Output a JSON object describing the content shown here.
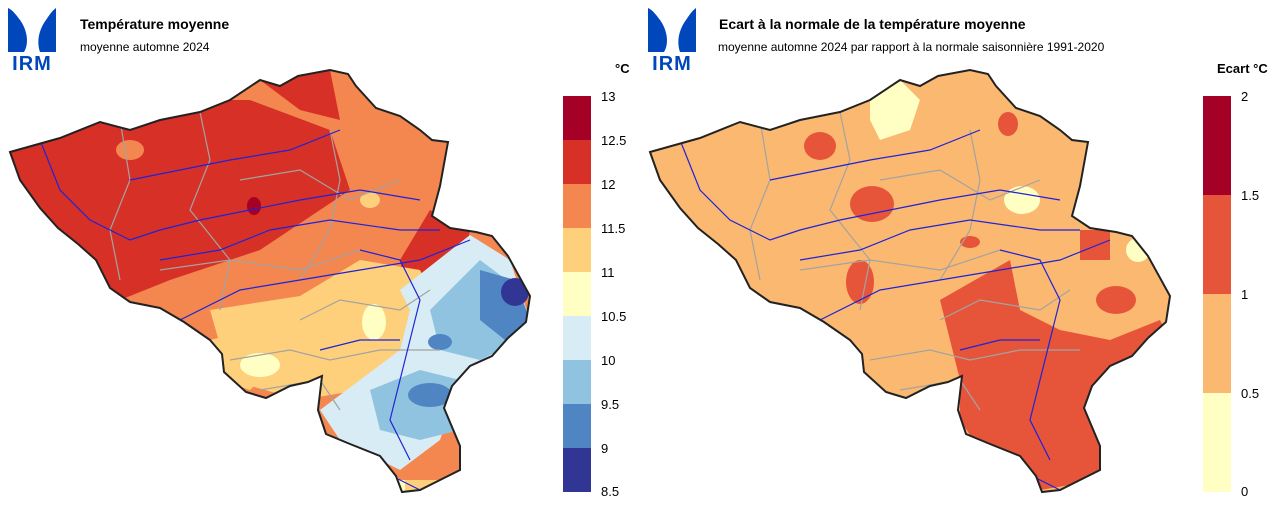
{
  "left_panel": {
    "logo_text": "IRM",
    "title": "Température moyenne",
    "subtitle": "moyenne automne 2024",
    "unit": "°C",
    "legend": {
      "ticks": [
        "13",
        "12.5",
        "12",
        "11.5",
        "11",
        "10.5",
        "10",
        "9.5",
        "9",
        "8.5"
      ],
      "colors": [
        "#a50026",
        "#d73027",
        "#f4874f",
        "#fed07b",
        "#ffffc3",
        "#d7ecf5",
        "#90c3e0",
        "#4f85c2",
        "#313695"
      ]
    }
  },
  "right_panel": {
    "logo_text": "IRM",
    "title": "Ecart à la normale de la température moyenne",
    "subtitle": "moyenne automne 2024 par rapport à la normale saisonnière 1991-2020",
    "unit": "Ecart °C",
    "legend": {
      "ticks": [
        "2",
        "1.5",
        "1",
        "0.5",
        "0"
      ],
      "colors": [
        "#a50026",
        "#e6553a",
        "#fbb870",
        "#ffffc4"
      ]
    }
  },
  "colors": {
    "logo_blue": "#0047bb",
    "rivers": "#1f23d6",
    "borders": "#a3a3a3",
    "outline": "#222222"
  }
}
